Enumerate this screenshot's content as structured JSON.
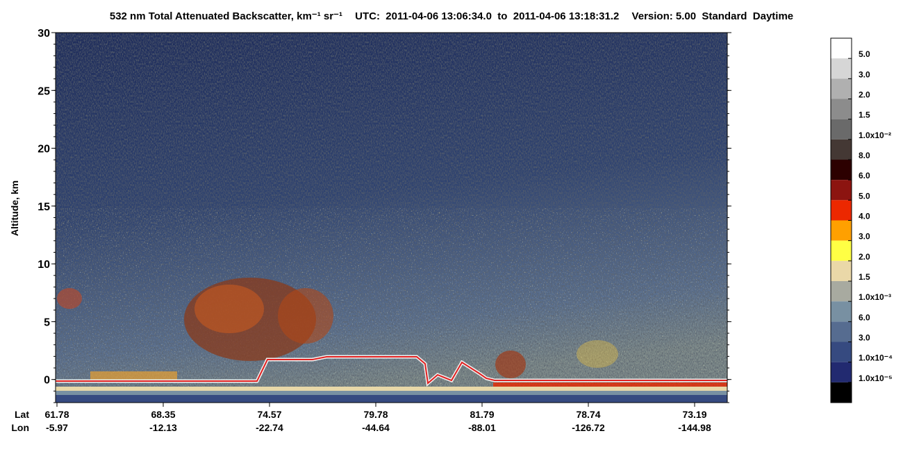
{
  "chart_data": {
    "type": "heatmap",
    "title": "532 nm Total Attenuated Backscatter, km⁻¹ sr⁻¹",
    "utc": "UTC:  2011-04-06 13:06:34.0  to  2011-04-06 13:18:31.2",
    "version": "Version: 5.00  Standard  Daytime",
    "y_label": "Altitude, km",
    "ylim": [
      -2,
      30
    ],
    "yticks": [
      0,
      5,
      10,
      15,
      20,
      25,
      30
    ],
    "lat_label": "Lat",
    "lon_label": "Lon",
    "lat": [
      "61.78",
      "68.35",
      "74.57",
      "79.78",
      "81.79",
      "78.74",
      "73.19"
    ],
    "lon": [
      "-5.97",
      "-12.13",
      "-22.74",
      "-44.64",
      "-88.01",
      "-126.72",
      "-144.98"
    ],
    "colorbar_levels": [
      {
        "value": 0.05,
        "label": "5.0"
      },
      {
        "value": 0.03,
        "label": "3.0"
      },
      {
        "value": 0.02,
        "label": "2.0"
      },
      {
        "value": 0.015,
        "label": "1.5"
      },
      {
        "value": 0.01,
        "label": "1.0x10⁻²"
      },
      {
        "value": 0.008,
        "label": "8.0"
      },
      {
        "value": 0.006,
        "label": "6.0"
      },
      {
        "value": 0.005,
        "label": "5.0"
      },
      {
        "value": 0.004,
        "label": "4.0"
      },
      {
        "value": 0.003,
        "label": "3.0"
      },
      {
        "value": 0.002,
        "label": "2.0"
      },
      {
        "value": 0.0015,
        "label": "1.5"
      },
      {
        "value": 0.001,
        "label": "1.0x10⁻³"
      },
      {
        "value": 0.0006,
        "label": "6.0"
      },
      {
        "value": 0.0003,
        "label": "3.0"
      },
      {
        "value": 0.0001,
        "label": "1.0x10⁻⁴"
      },
      {
        "value": 1e-05,
        "label": "1.0x10⁻⁵"
      }
    ],
    "colorbar_colors": [
      "#ffffff",
      "#d6d6d6",
      "#b0b0b0",
      "#8c8c8c",
      "#6a6a6a",
      "#443834",
      "#2c0000",
      "#8c1410",
      "#ec2800",
      "#ffa000",
      "#ffff44",
      "#ead8a8",
      "#a8aaa0",
      "#7890a2",
      "#566c90",
      "#364a80",
      "#222a70",
      "#000000"
    ]
  }
}
